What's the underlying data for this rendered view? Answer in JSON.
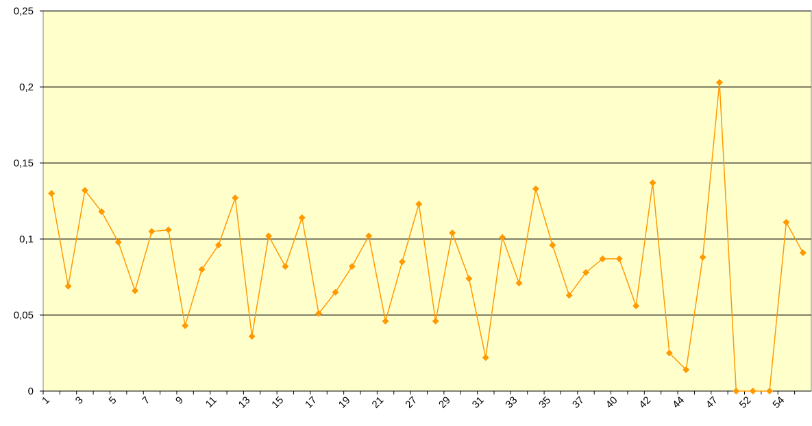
{
  "chart_data": {
    "type": "line",
    "categories": [
      "1",
      null,
      "3",
      null,
      "5",
      null,
      "7",
      null,
      "9",
      null,
      "11",
      null,
      "13",
      null,
      "15",
      null,
      "17",
      null,
      "19",
      null,
      "21",
      null,
      "27",
      null,
      "29",
      null,
      "31",
      null,
      "33",
      null,
      "35",
      null,
      "37",
      null,
      "40",
      null,
      "42",
      null,
      "44",
      null,
      "47",
      null,
      "52",
      null,
      "54",
      null
    ],
    "series": [
      {
        "color": "#ff9900",
        "values": [
          0.13,
          0.069,
          0.132,
          0.118,
          0.098,
          0.066,
          0.105,
          0.106,
          0.043,
          0.08,
          0.096,
          0.127,
          0.036,
          0.102,
          0.082,
          0.114,
          0.051,
          0.065,
          0.082,
          0.102,
          0.046,
          0.085,
          0.123,
          0.046,
          0.104,
          0.074,
          0.022,
          0.101,
          0.071,
          0.133,
          0.096,
          0.063,
          0.078,
          0.087,
          0.087,
          0.056,
          0.137,
          0.025,
          0.014,
          0.088,
          0.203,
          0,
          0,
          0,
          0.111,
          0.091
        ]
      }
    ],
    "ylim": [
      0,
      0.25
    ],
    "yticks": [
      0,
      {
        "value": 0.05,
        "label": "0,05"
      },
      {
        "value": 0.1,
        "label": "0,1"
      },
      {
        "value": 0.15,
        "label": "0,15"
      },
      {
        "value": 0.2,
        "label": "0,2"
      },
      {
        "value": 0.25,
        "label": "0,25"
      }
    ],
    "grid": true,
    "background": "#ffffcc"
  }
}
